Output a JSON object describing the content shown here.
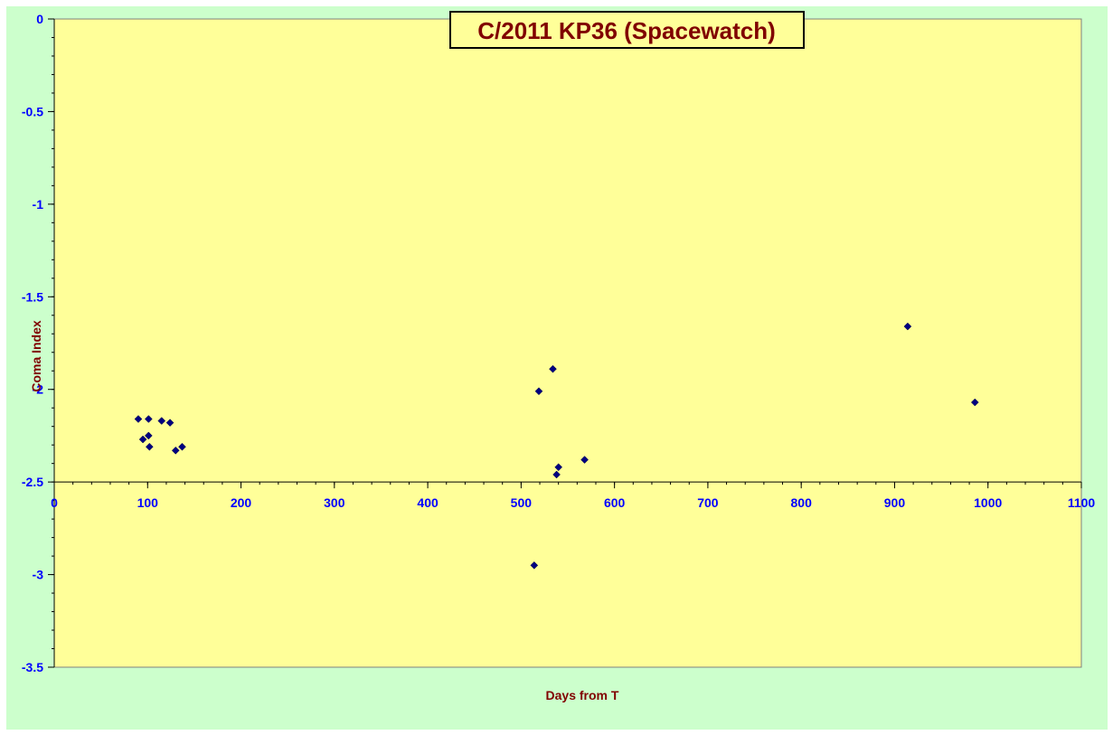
{
  "chart_data": {
    "type": "scatter",
    "title": "C/2011 KP36 (Spacewatch)",
    "xlabel": "Days from  T",
    "ylabel": "Coma Index",
    "xlim": [
      0,
      1100
    ],
    "ylim": [
      -3.5,
      0
    ],
    "x_ticks": [
      0,
      100,
      200,
      300,
      400,
      500,
      600,
      700,
      800,
      900,
      1000,
      1100
    ],
    "y_ticks": [
      0,
      -0.5,
      -1,
      -1.5,
      -2,
      -2.5,
      -3,
      -3.5
    ],
    "x_axis_crosses_y": -2.5,
    "grid": false,
    "legend": "none",
    "colors": {
      "plot_background": "#ffff99",
      "chart_background": "#ccffcc",
      "marker": "#000080",
      "title_text": "#800000",
      "tick_text": "#0000ff"
    },
    "series": [
      {
        "marker": "diamond",
        "points": [
          {
            "x": 90,
            "y": -2.16
          },
          {
            "x": 95,
            "y": -2.27
          },
          {
            "x": 101,
            "y": -2.16
          },
          {
            "x": 101,
            "y": -2.25
          },
          {
            "x": 102,
            "y": -2.31
          },
          {
            "x": 115,
            "y": -2.17
          },
          {
            "x": 124,
            "y": -2.18
          },
          {
            "x": 130,
            "y": -2.33
          },
          {
            "x": 137,
            "y": -2.31
          },
          {
            "x": 514,
            "y": -2.95
          },
          {
            "x": 519,
            "y": -2.01
          },
          {
            "x": 534,
            "y": -1.89
          },
          {
            "x": 538,
            "y": -2.46
          },
          {
            "x": 540,
            "y": -2.42
          },
          {
            "x": 568,
            "y": -2.38
          },
          {
            "x": 914,
            "y": -1.66
          },
          {
            "x": 986,
            "y": -2.07
          }
        ]
      }
    ]
  }
}
